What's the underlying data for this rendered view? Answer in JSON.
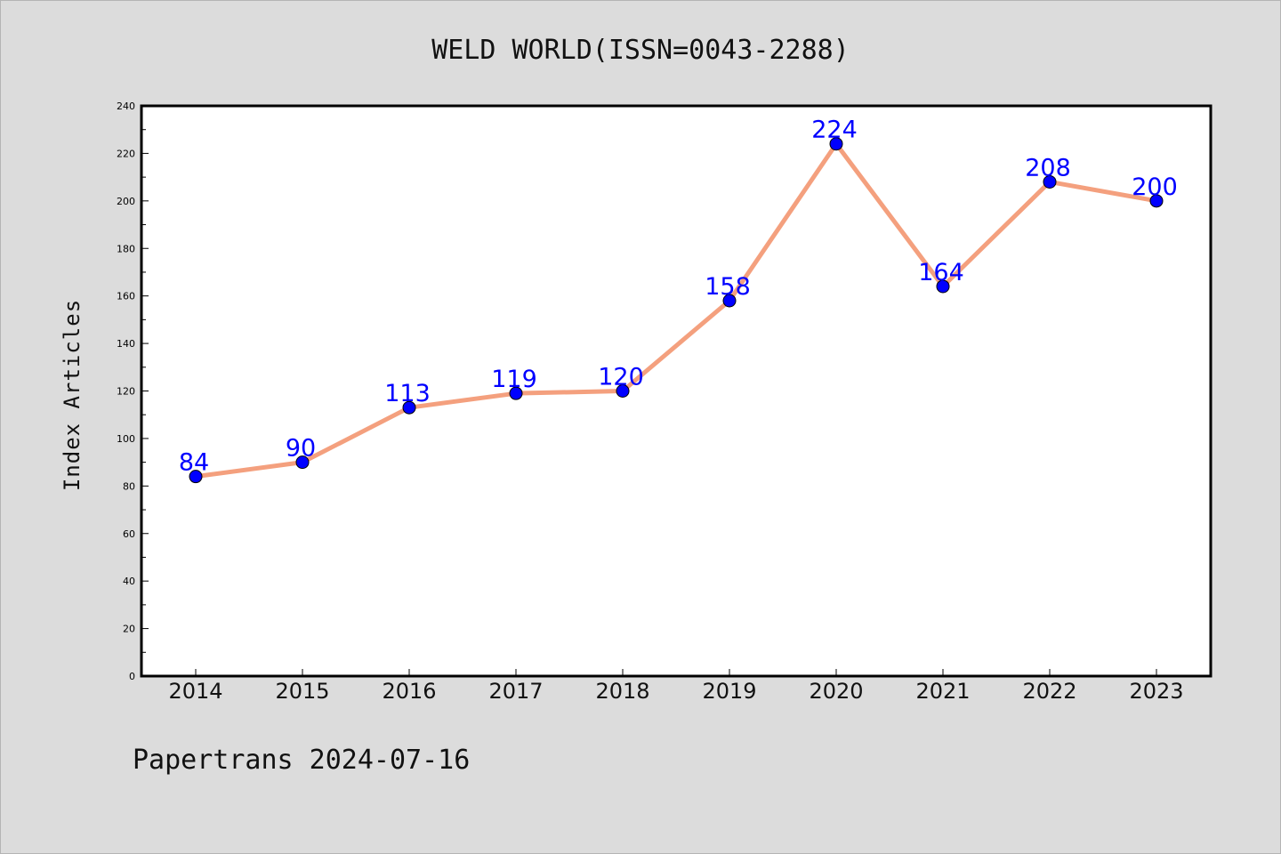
{
  "footer": "Papertrans 2024-07-16",
  "colors": {
    "background": "#dcdcdc",
    "plot_background": "#ffffff",
    "line": "#f4a07e",
    "marker": "#0000ff",
    "data_label": "#0000ff"
  },
  "chart_data": {
    "type": "line",
    "title": "WELD WORLD(ISSN=0043-2288)",
    "xlabel": "",
    "ylabel": "Index Articles",
    "categories": [
      "2014",
      "2015",
      "2016",
      "2017",
      "2018",
      "2019",
      "2020",
      "2021",
      "2022",
      "2023"
    ],
    "series": [
      {
        "values": [
          84,
          90,
          113,
          119,
          120,
          158,
          224,
          164,
          208,
          200
        ],
        "data_labels": [
          "84",
          "90",
          "113",
          "119",
          "120",
          "158",
          "224",
          "164",
          "208",
          "200"
        ]
      }
    ],
    "ylim": [
      0,
      240
    ],
    "yticks": [
      "0",
      "20",
      "40",
      "60",
      "80",
      "100",
      "120",
      "140",
      "160",
      "180",
      "200",
      "220",
      "240"
    ],
    "grid": false,
    "legend": "none"
  }
}
